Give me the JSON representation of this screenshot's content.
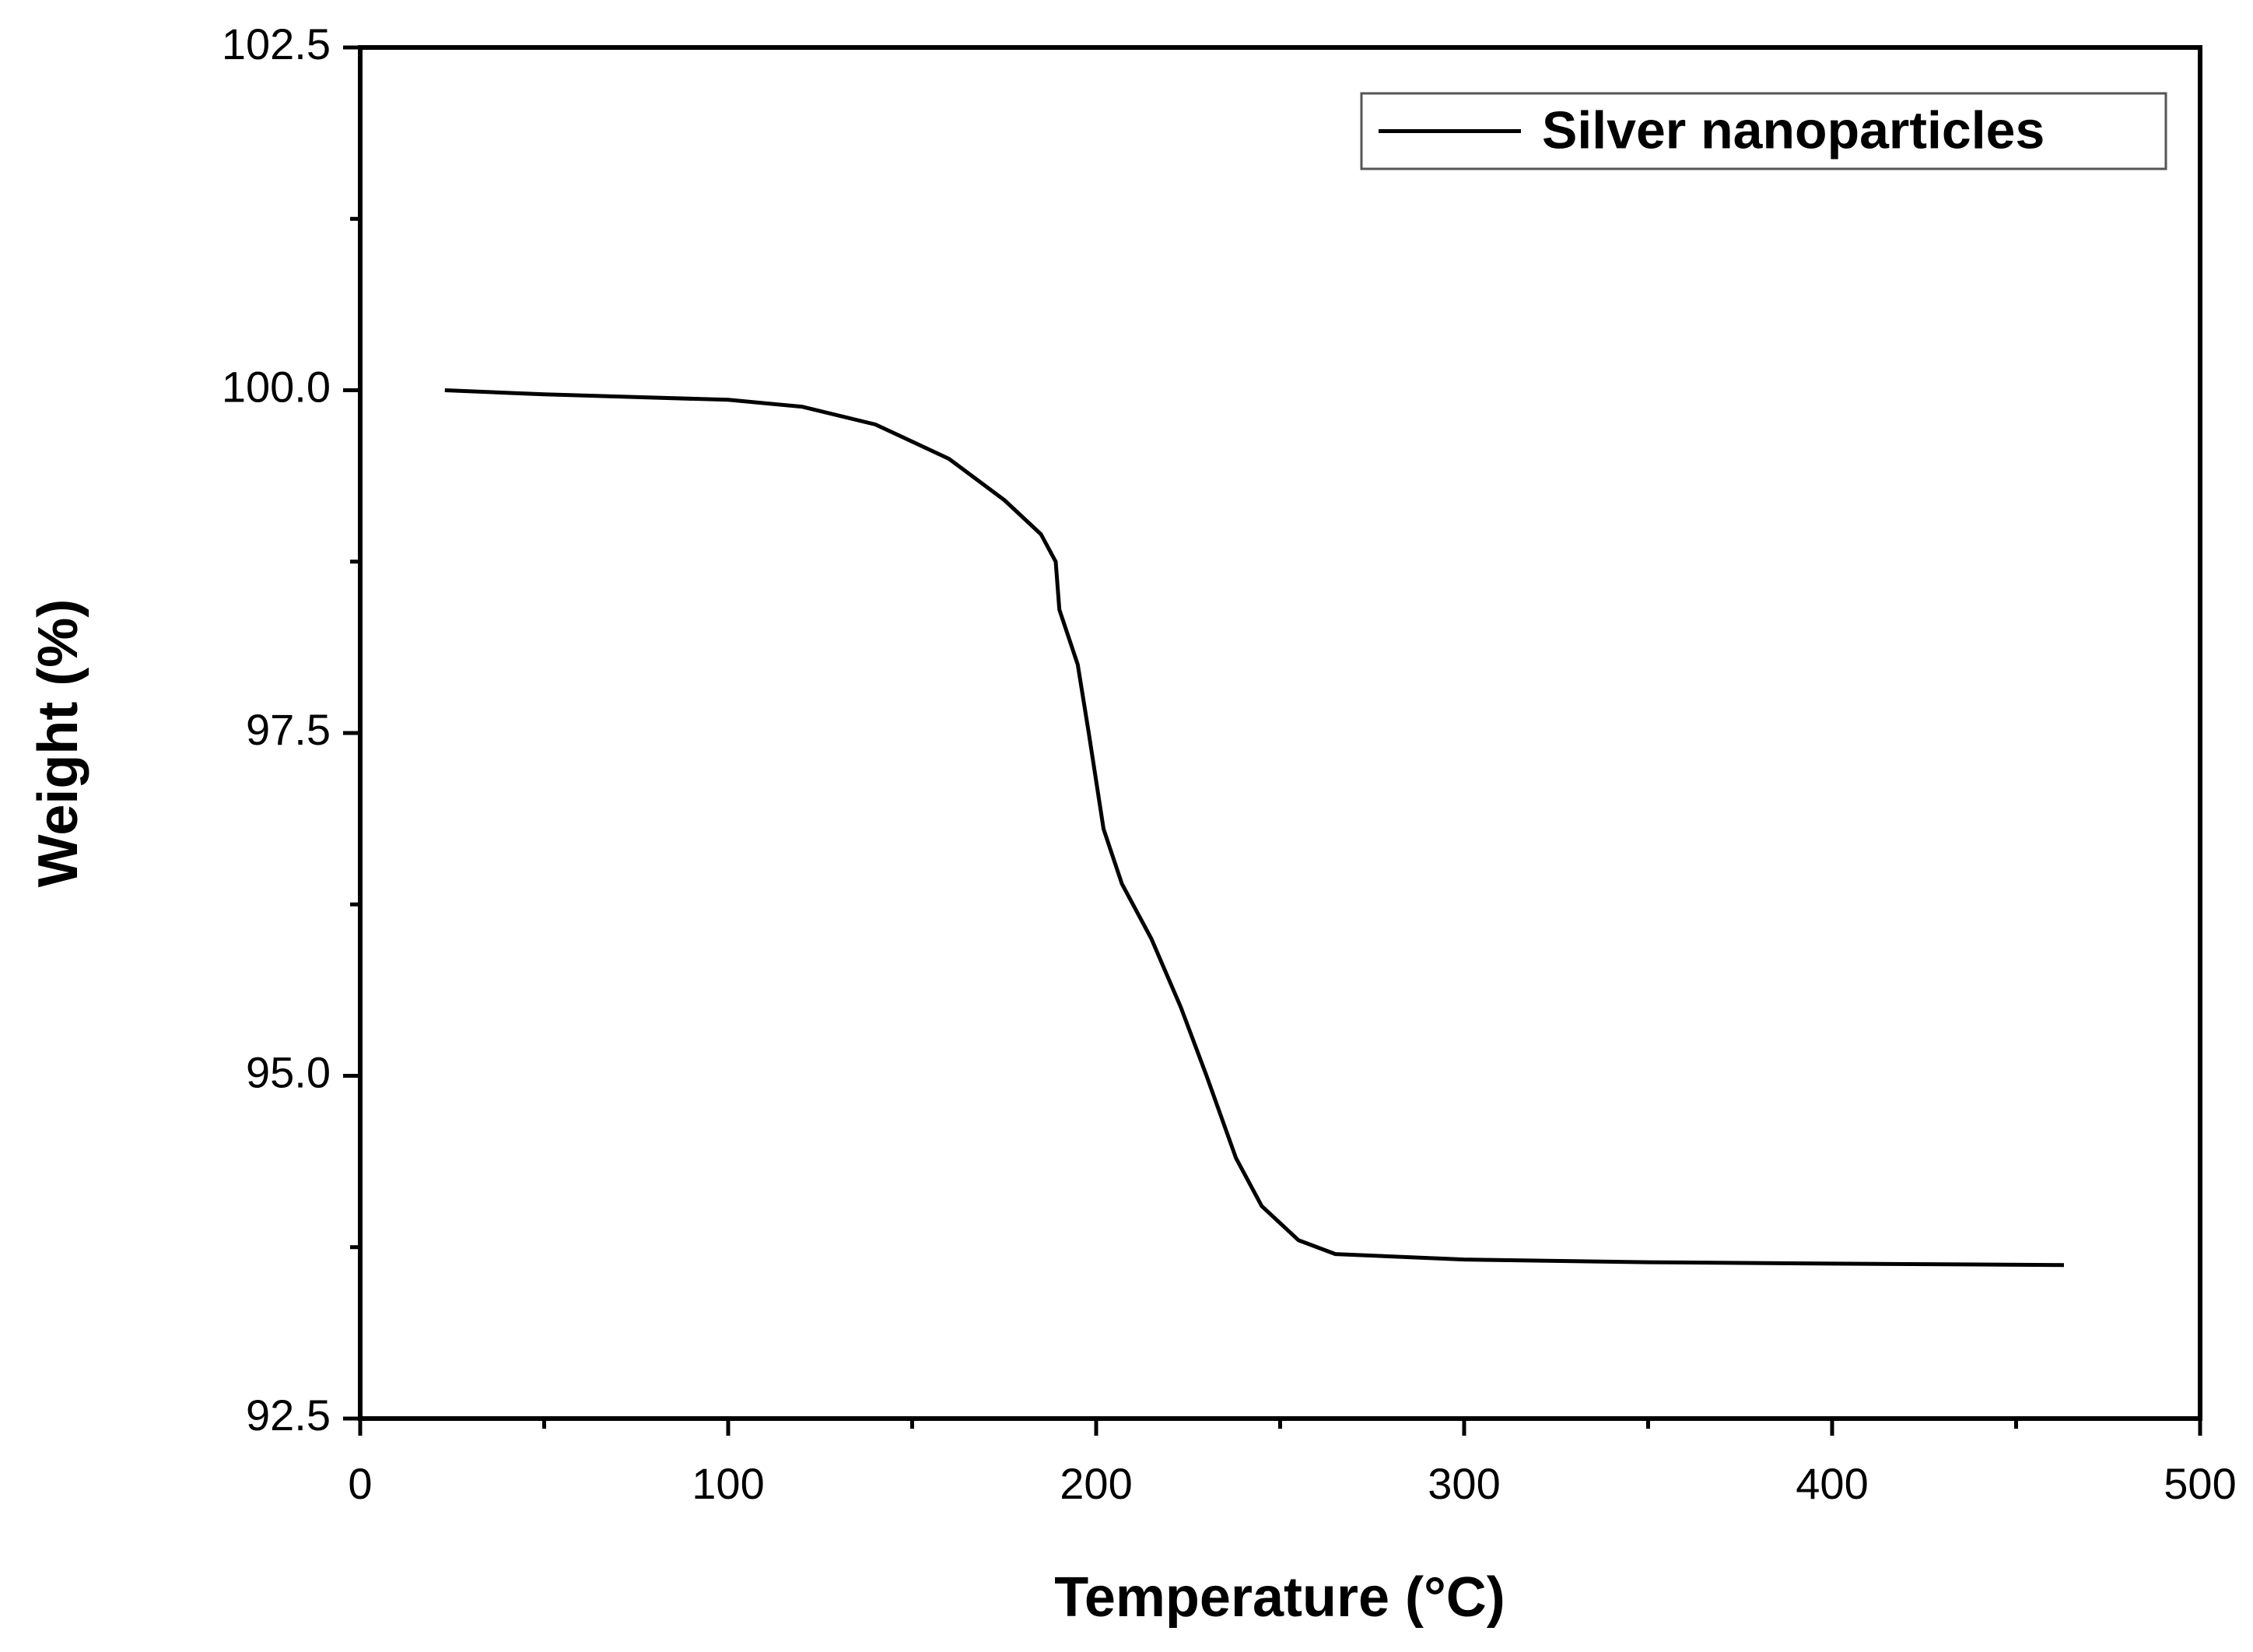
{
  "chart_data": {
    "type": "line",
    "x_label": "Temperature (°C)",
    "y_label": "Weight (%)",
    "xlim": [
      0,
      500
    ],
    "xticks": [
      0,
      100,
      200,
      300,
      400,
      500
    ],
    "ylim": [
      92.5,
      102.5
    ],
    "yticks": [
      92.5,
      {
        "value": 95,
        "label": "95.0"
      },
      97.5,
      {
        "value": 100,
        "label": "100.0"
      },
      102.5
    ],
    "legend": "top-right",
    "series": [
      {
        "name": "Silver nanoparticles",
        "color": "#000000",
        "x": [
          23,
          50,
          100,
          120,
          140,
          160,
          175,
          185,
          189,
          190,
          195,
          198,
          202,
          207,
          215,
          223,
          230,
          238,
          245,
          255,
          265,
          300,
          350,
          400,
          463
        ],
        "values": [
          100.0,
          99.97,
          99.93,
          99.88,
          99.75,
          99.5,
          99.2,
          98.95,
          98.75,
          98.4,
          98.0,
          97.5,
          96.8,
          96.4,
          96.0,
          95.5,
          95.0,
          94.4,
          94.05,
          93.8,
          93.7,
          93.66,
          93.64,
          93.63,
          93.62
        ]
      }
    ]
  }
}
